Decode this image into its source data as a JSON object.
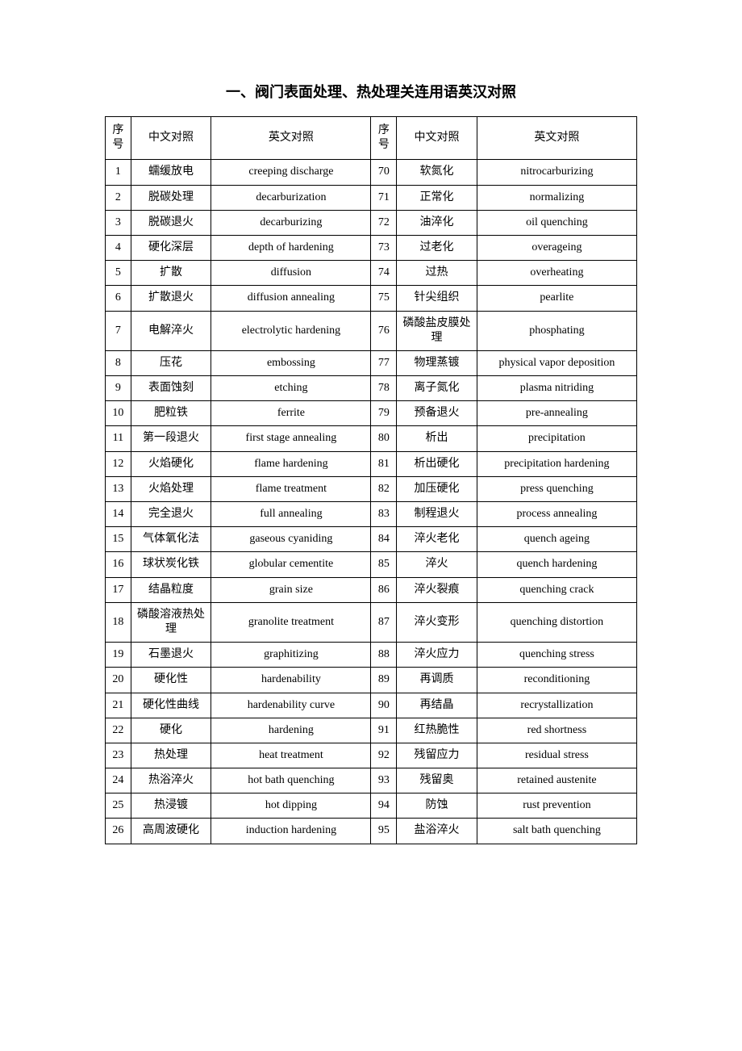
{
  "title": "一、阀门表面处理、热处理关连用语英汉对照",
  "headers": {
    "num": "序号",
    "cn": "中文对照",
    "en": "英文对照"
  },
  "rows": [
    {
      "n1": "1",
      "c1": "蠕缓放电",
      "e1": "creeping discharge",
      "n2": "70",
      "c2": "软氮化",
      "e2": "nitrocarburizing"
    },
    {
      "n1": "2",
      "c1": "脱碳处理",
      "e1": "decarburization",
      "n2": "71",
      "c2": "正常化",
      "e2": "normalizing"
    },
    {
      "n1": "3",
      "c1": "脱碳退火",
      "e1": "decarburizing",
      "n2": "72",
      "c2": "油淬化",
      "e2": "oil quenching"
    },
    {
      "n1": "4",
      "c1": "硬化深层",
      "e1": "depth of hardening",
      "n2": "73",
      "c2": "过老化",
      "e2": "overageing"
    },
    {
      "n1": "5",
      "c1": "扩散",
      "e1": "diffusion",
      "n2": "74",
      "c2": "过热",
      "e2": "overheating"
    },
    {
      "n1": "6",
      "c1": "扩散退火",
      "e1": "diffusion annealing",
      "n2": "75",
      "c2": "针尖组织",
      "e2": "pearlite"
    },
    {
      "n1": "7",
      "c1": "电解淬火",
      "e1": "electrolytic hardening",
      "n2": "76",
      "c2": "磷酸盐皮膜处理",
      "e2": "phosphating"
    },
    {
      "n1": "8",
      "c1": "压花",
      "e1": "embossing",
      "n2": "77",
      "c2": "物理蒸镀",
      "e2": "physical vapor deposition"
    },
    {
      "n1": "9",
      "c1": "表面蚀刻",
      "e1": "etching",
      "n2": "78",
      "c2": "离子氮化",
      "e2": "plasma nitriding"
    },
    {
      "n1": "10",
      "c1": "肥粒铁",
      "e1": "ferrite",
      "n2": "79",
      "c2": "预备退火",
      "e2": "pre-annealing"
    },
    {
      "n1": "11",
      "c1": "第一段退火",
      "e1": "first stage annealing",
      "n2": "80",
      "c2": "析出",
      "e2": "precipitation"
    },
    {
      "n1": "12",
      "c1": "火焰硬化",
      "e1": "flame hardening",
      "n2": "81",
      "c2": "析出硬化",
      "e2": "precipitation hardening"
    },
    {
      "n1": "13",
      "c1": "火焰处理",
      "e1": "flame treatment",
      "n2": "82",
      "c2": "加压硬化",
      "e2": "press quenching"
    },
    {
      "n1": "14",
      "c1": "完全退火",
      "e1": "full annealing",
      "n2": "83",
      "c2": "制程退火",
      "e2": "process annealing"
    },
    {
      "n1": "15",
      "c1": "气体氧化法",
      "e1": "gaseous cyaniding",
      "n2": "84",
      "c2": "淬火老化",
      "e2": "quench ageing"
    },
    {
      "n1": "16",
      "c1": "球状炭化铁",
      "e1": "globular cementite",
      "n2": "85",
      "c2": "淬火",
      "e2": "quench hardening"
    },
    {
      "n1": "17",
      "c1": "结晶粒度",
      "e1": "grain size",
      "n2": "86",
      "c2": "淬火裂痕",
      "e2": "quenching crack"
    },
    {
      "n1": "18",
      "c1": "磷酸溶液热处理",
      "e1": "granolite treatment",
      "n2": "87",
      "c2": "淬火变形",
      "e2": "quenching distortion"
    },
    {
      "n1": "19",
      "c1": "石墨退火",
      "e1": "graphitizing",
      "n2": "88",
      "c2": "淬火应力",
      "e2": "quenching stress"
    },
    {
      "n1": "20",
      "c1": "硬化性",
      "e1": "hardenability",
      "n2": "89",
      "c2": "再调质",
      "e2": "reconditioning"
    },
    {
      "n1": "21",
      "c1": "硬化性曲线",
      "e1": "hardenability curve",
      "n2": "90",
      "c2": "再结晶",
      "e2": "recrystallization"
    },
    {
      "n1": "22",
      "c1": "硬化",
      "e1": "hardening",
      "n2": "91",
      "c2": "红热脆性",
      "e2": "red shortness"
    },
    {
      "n1": "23",
      "c1": "热处理",
      "e1": "heat treatment",
      "n2": "92",
      "c2": "残留应力",
      "e2": "residual stress"
    },
    {
      "n1": "24",
      "c1": "热浴淬火",
      "e1": "hot bath quenching",
      "n2": "93",
      "c2": "残留奥",
      "e2": "retained austenite"
    },
    {
      "n1": "25",
      "c1": "热浸镀",
      "e1": "hot dipping",
      "n2": "94",
      "c2": "防蚀",
      "e2": "rust prevention"
    },
    {
      "n1": "26",
      "c1": "高周波硬化",
      "e1": "induction hardening",
      "n2": "95",
      "c2": "盐浴淬火",
      "e2": "salt bath quenching"
    }
  ]
}
